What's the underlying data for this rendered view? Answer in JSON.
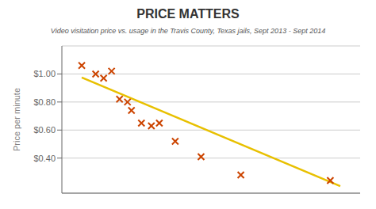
{
  "chart_data": {
    "type": "scatter",
    "title": "PRICE MATTERS",
    "subtitle": "Video visitation price vs. usage in the Travis County, Texas jails,  Sept 2013 - Sept 2014",
    "y_label": "Price per minute",
    "series": [
      {
        "type": "scatter",
        "color": "#cc4400",
        "marker": "x",
        "x": [
          1.5,
          2.2,
          2.6,
          3.0,
          3.4,
          3.8,
          4.0,
          4.5,
          5.0,
          5.4,
          6.2,
          7.5,
          9.5,
          14.0
        ],
        "values": [
          1.06,
          1.0,
          0.97,
          1.02,
          0.82,
          0.8,
          0.74,
          0.65,
          0.63,
          0.65,
          0.52,
          0.41,
          0.28,
          0.24
        ]
      },
      {
        "type": "line",
        "color": "#e8c000",
        "x": [
          1.5,
          14.5
        ],
        "values": [
          0.975,
          0.2
        ]
      }
    ],
    "xlim": [
      0.5,
      15.5
    ],
    "ylim": [
      0.15,
      1.2
    ],
    "yticks": [
      {
        "value": 0.4,
        "label": "$0.40"
      },
      {
        "value": 0.6,
        "label": "$0.60"
      },
      {
        "value": 0.8,
        "label": "$0.80"
      },
      {
        "value": 1.0,
        "label": "$1.00"
      }
    ],
    "grid": true,
    "tick_labels": "y"
  }
}
